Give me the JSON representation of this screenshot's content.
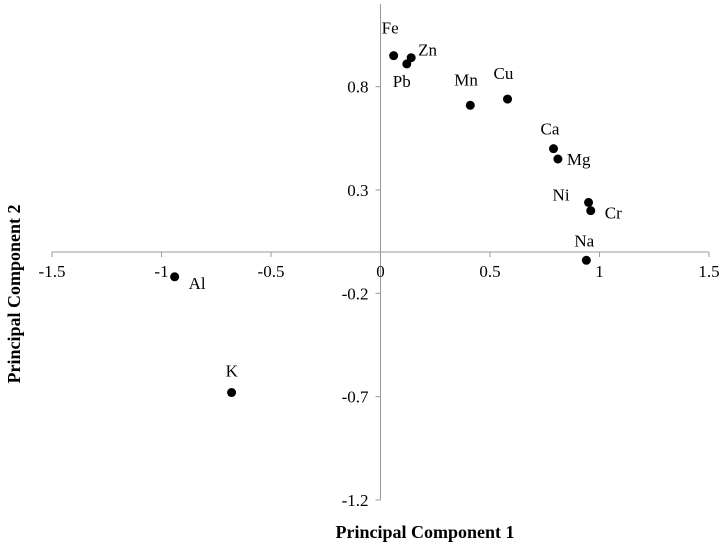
{
  "chart_data": {
    "type": "scatter",
    "xlabel": "Principal Component 1",
    "ylabel": "Principal Component 2",
    "xlim": [
      -1.5,
      1.5
    ],
    "ylim": [
      -1.2,
      1.2
    ],
    "xticks": [
      "-1.5",
      "-1",
      "-0.5",
      "0",
      "0.5",
      "1",
      "1.5"
    ],
    "yticks": [
      "-1.2",
      "-0.7",
      "-0.2",
      "0.3",
      "0.8"
    ],
    "points": [
      {
        "label": "Fe",
        "x": 0.06,
        "y": 0.95
      },
      {
        "label": "Zn",
        "x": 0.14,
        "y": 0.94
      },
      {
        "label": "Pb",
        "x": 0.12,
        "y": 0.91
      },
      {
        "label": "Mn",
        "x": 0.41,
        "y": 0.71
      },
      {
        "label": "Cu",
        "x": 0.58,
        "y": 0.74
      },
      {
        "label": "Ca",
        "x": 0.79,
        "y": 0.5
      },
      {
        "label": "Mg",
        "x": 0.81,
        "y": 0.45
      },
      {
        "label": "Ni",
        "x": 0.95,
        "y": 0.24
      },
      {
        "label": "Cr",
        "x": 0.96,
        "y": 0.2
      },
      {
        "label": "Na",
        "x": 0.94,
        "y": -0.04
      },
      {
        "label": "Al",
        "x": -0.94,
        "y": -0.12
      },
      {
        "label": "K",
        "x": -0.68,
        "y": -0.68
      }
    ],
    "grid": false,
    "legend": "none"
  }
}
